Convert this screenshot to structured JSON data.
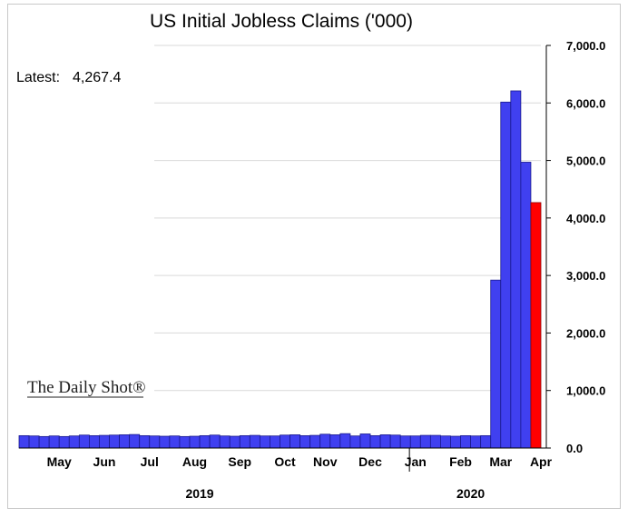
{
  "chart_data": {
    "type": "bar",
    "title": "US Initial Jobless Claims ('000)",
    "annotation_label": "Latest:",
    "annotation_value": "4,267.4",
    "brand": "The Daily Shot®",
    "ylim": [
      0,
      7000
    ],
    "yticks": [
      "0.0",
      "1,000.0",
      "2,000.0",
      "3,000.0",
      "4,000.0",
      "5,000.0",
      "6,000.0",
      "7,000.0"
    ],
    "ytick_values": [
      0,
      1000,
      2000,
      3000,
      4000,
      5000,
      6000,
      7000
    ],
    "y_axis_side": "right",
    "grid": true,
    "months": [
      {
        "label": "May",
        "week_index": 4
      },
      {
        "label": "Jun",
        "week_index": 8.5
      },
      {
        "label": "Jul",
        "week_index": 13
      },
      {
        "label": "Aug",
        "week_index": 17.5
      },
      {
        "label": "Sep",
        "week_index": 22
      },
      {
        "label": "Oct",
        "week_index": 26.5
      },
      {
        "label": "Nov",
        "week_index": 30.5
      },
      {
        "label": "Dec",
        "week_index": 35
      },
      {
        "label": "Jan",
        "week_index": 39.5
      },
      {
        "label": "Feb",
        "week_index": 44
      },
      {
        "label": "Mar",
        "week_index": 48
      },
      {
        "label": "Apr",
        "week_index": 52
      }
    ],
    "year_divider_week_index": 37,
    "years": [
      {
        "label": "2019",
        "week_index": 18
      },
      {
        "label": "2020",
        "week_index": 45
      }
    ],
    "colors": {
      "bar": "#4040f0",
      "latest": "#ff0000",
      "bar_stroke": "#1a1a8c",
      "grid": "#d9d9d9"
    },
    "values": [
      215,
      210,
      200,
      210,
      200,
      210,
      225,
      215,
      220,
      225,
      230,
      235,
      215,
      210,
      205,
      210,
      200,
      205,
      215,
      225,
      210,
      205,
      215,
      220,
      210,
      210,
      225,
      230,
      215,
      220,
      240,
      230,
      250,
      210,
      245,
      215,
      230,
      225,
      210,
      210,
      220,
      220,
      210,
      205,
      215,
      210,
      215,
      2920,
      6015,
      6210,
      4970,
      4267.4
    ],
    "highlight_index": 51
  }
}
